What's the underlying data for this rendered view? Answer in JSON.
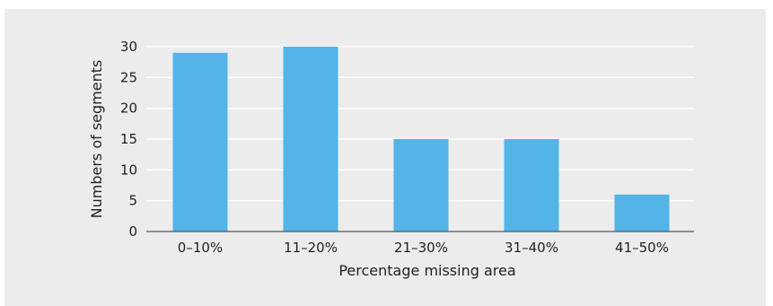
{
  "chart_data": {
    "type": "bar",
    "title": "",
    "xlabel": "Percentage missing area",
    "ylabel": "Numbers of segments",
    "categories": [
      "0–10%",
      "11–20%",
      "21–30%",
      "31–40%",
      "41–50%"
    ],
    "values": [
      29,
      30,
      15,
      15,
      6
    ],
    "ylim": [
      0,
      30
    ],
    "yticks": [
      0,
      5,
      10,
      15,
      20,
      25,
      30
    ],
    "ytick_labels": [
      "0",
      "5",
      "10",
      "15",
      "20",
      "25",
      "30"
    ],
    "grid": true,
    "bar_color": "#52b4e7",
    "grid_color": "#ffffff"
  }
}
